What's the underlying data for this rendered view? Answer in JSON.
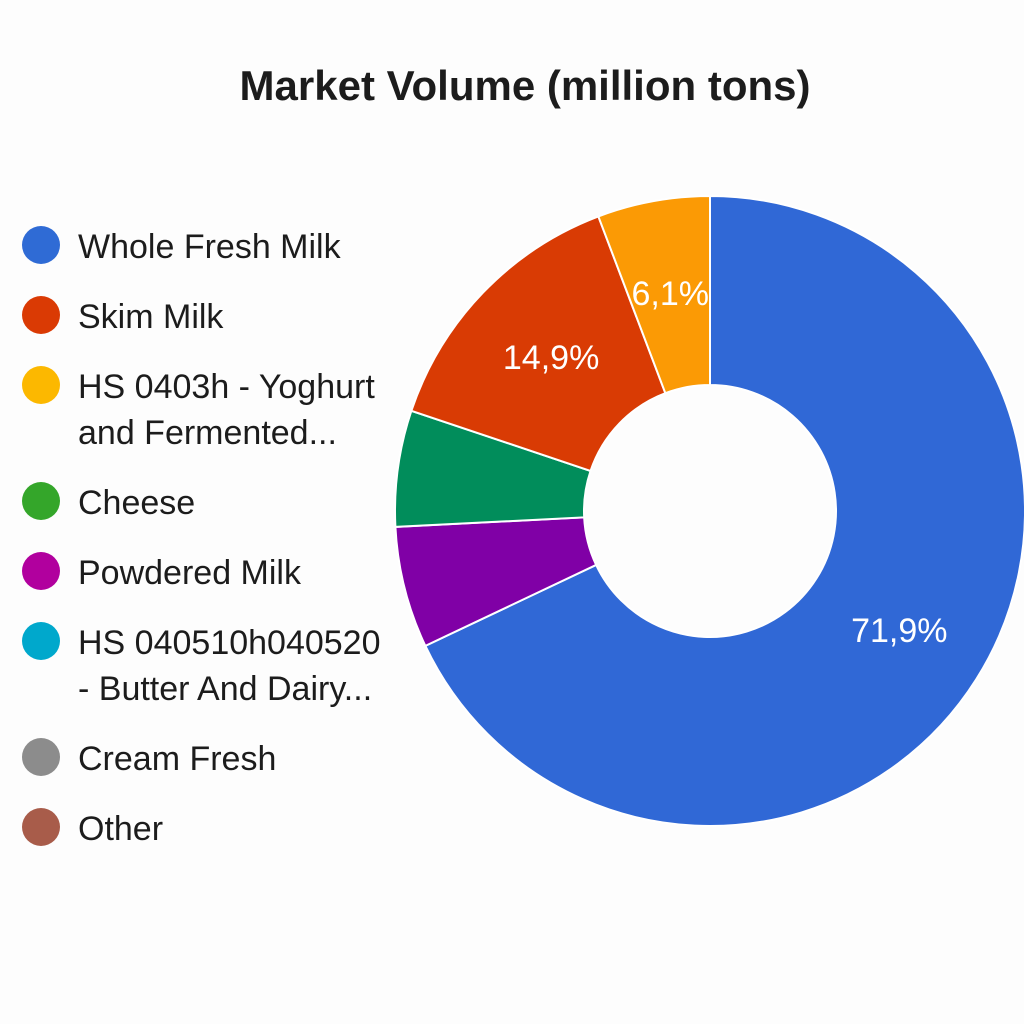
{
  "chart_data": {
    "type": "pie",
    "title": "Market Volume (million tons)",
    "categories": [
      "Whole Fresh Milk",
      "Skim Milk",
      "HS 0403h - Yoghurt\nand Fermented...",
      "Cheese",
      "Powdered Milk",
      "HS 040510h040520\n- Butter And Dairy...",
      "Cream Fresh",
      "Other"
    ],
    "values": [
      71.9,
      14.9,
      6.1,
      6.3,
      6.6,
      0,
      0,
      0
    ],
    "value_labels": [
      "71,9%",
      "14,9%",
      "6,1%",
      "",
      "",
      "",
      "",
      ""
    ],
    "colors": [
      "#3068d6",
      "#d93b04",
      "#fb9a05",
      "#018d5b",
      "#8000a6",
      "#00a8cc",
      "#8c8c8c",
      "#a85c4a"
    ],
    "legend_colors": [
      "#2f6bd5",
      "#da3a04",
      "#fcb800",
      "#34a62a",
      "#b1009e",
      "#00a8cc",
      "#8c8c8c",
      "#a85c4a"
    ],
    "legend": "left",
    "hole": "donut"
  }
}
